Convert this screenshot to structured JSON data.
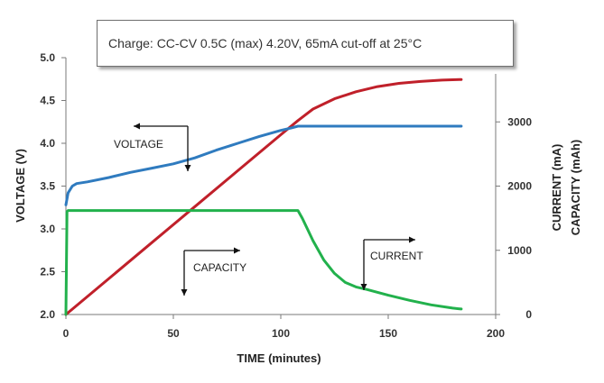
{
  "chart_data": {
    "type": "line",
    "title": "Charge:   CC-CV 0.5C (max) 4.20V, 65mA cut-off at 25°C",
    "xlabel": "TIME (minutes)",
    "ylabel_left": "VOLTAGE (V)",
    "ylabel_right_1": "CURRENT (mA)",
    "ylabel_right_2": "CAPACITY (mAh)",
    "xlim": [
      0,
      200
    ],
    "ylim_left": [
      2.0,
      5.0
    ],
    "ylim_right": [
      0,
      4000
    ],
    "x_ticks": [
      "0",
      "50",
      "100",
      "150",
      "200"
    ],
    "y_left_ticks": [
      "2.0",
      "2.5",
      "3.0",
      "3.5",
      "4.0",
      "4.5",
      "5.0"
    ],
    "y_right_ticks": [
      "0",
      "1000",
      "2000",
      "3000"
    ],
    "grid": false,
    "series": [
      {
        "name": "VOLTAGE",
        "axis": "left",
        "color": "#2f7bbf",
        "x": [
          0,
          1,
          3,
          5,
          10,
          20,
          30,
          40,
          50,
          60,
          70,
          80,
          90,
          100,
          105,
          108,
          120,
          140,
          160,
          184
        ],
        "y": [
          3.28,
          3.42,
          3.5,
          3.53,
          3.55,
          3.6,
          3.66,
          3.71,
          3.76,
          3.83,
          3.92,
          4.0,
          4.08,
          4.15,
          4.18,
          4.2,
          4.2,
          4.2,
          4.2,
          4.2
        ]
      },
      {
        "name": "CURRENT",
        "axis": "right",
        "color": "#22b14c",
        "x": [
          0,
          0.5,
          1,
          50,
          107,
          108,
          110,
          115,
          120,
          125,
          130,
          135,
          140,
          150,
          160,
          170,
          180,
          184
        ],
        "y": [
          0,
          1600,
          1620,
          1620,
          1620,
          1620,
          1500,
          1150,
          850,
          640,
          500,
          430,
          390,
          300,
          220,
          150,
          100,
          85
        ]
      },
      {
        "name": "CAPACITY",
        "axis": "right",
        "color": "#c0202a",
        "x": [
          0,
          20,
          40,
          60,
          80,
          100,
          108,
          115,
          125,
          135,
          145,
          155,
          165,
          175,
          184
        ],
        "y": [
          0,
          560,
          1120,
          1680,
          2240,
          2800,
          3020,
          3200,
          3360,
          3470,
          3550,
          3600,
          3630,
          3650,
          3660
        ]
      }
    ],
    "callouts": [
      "VOLTAGE",
      "CAPACITY",
      "CURRENT"
    ]
  }
}
